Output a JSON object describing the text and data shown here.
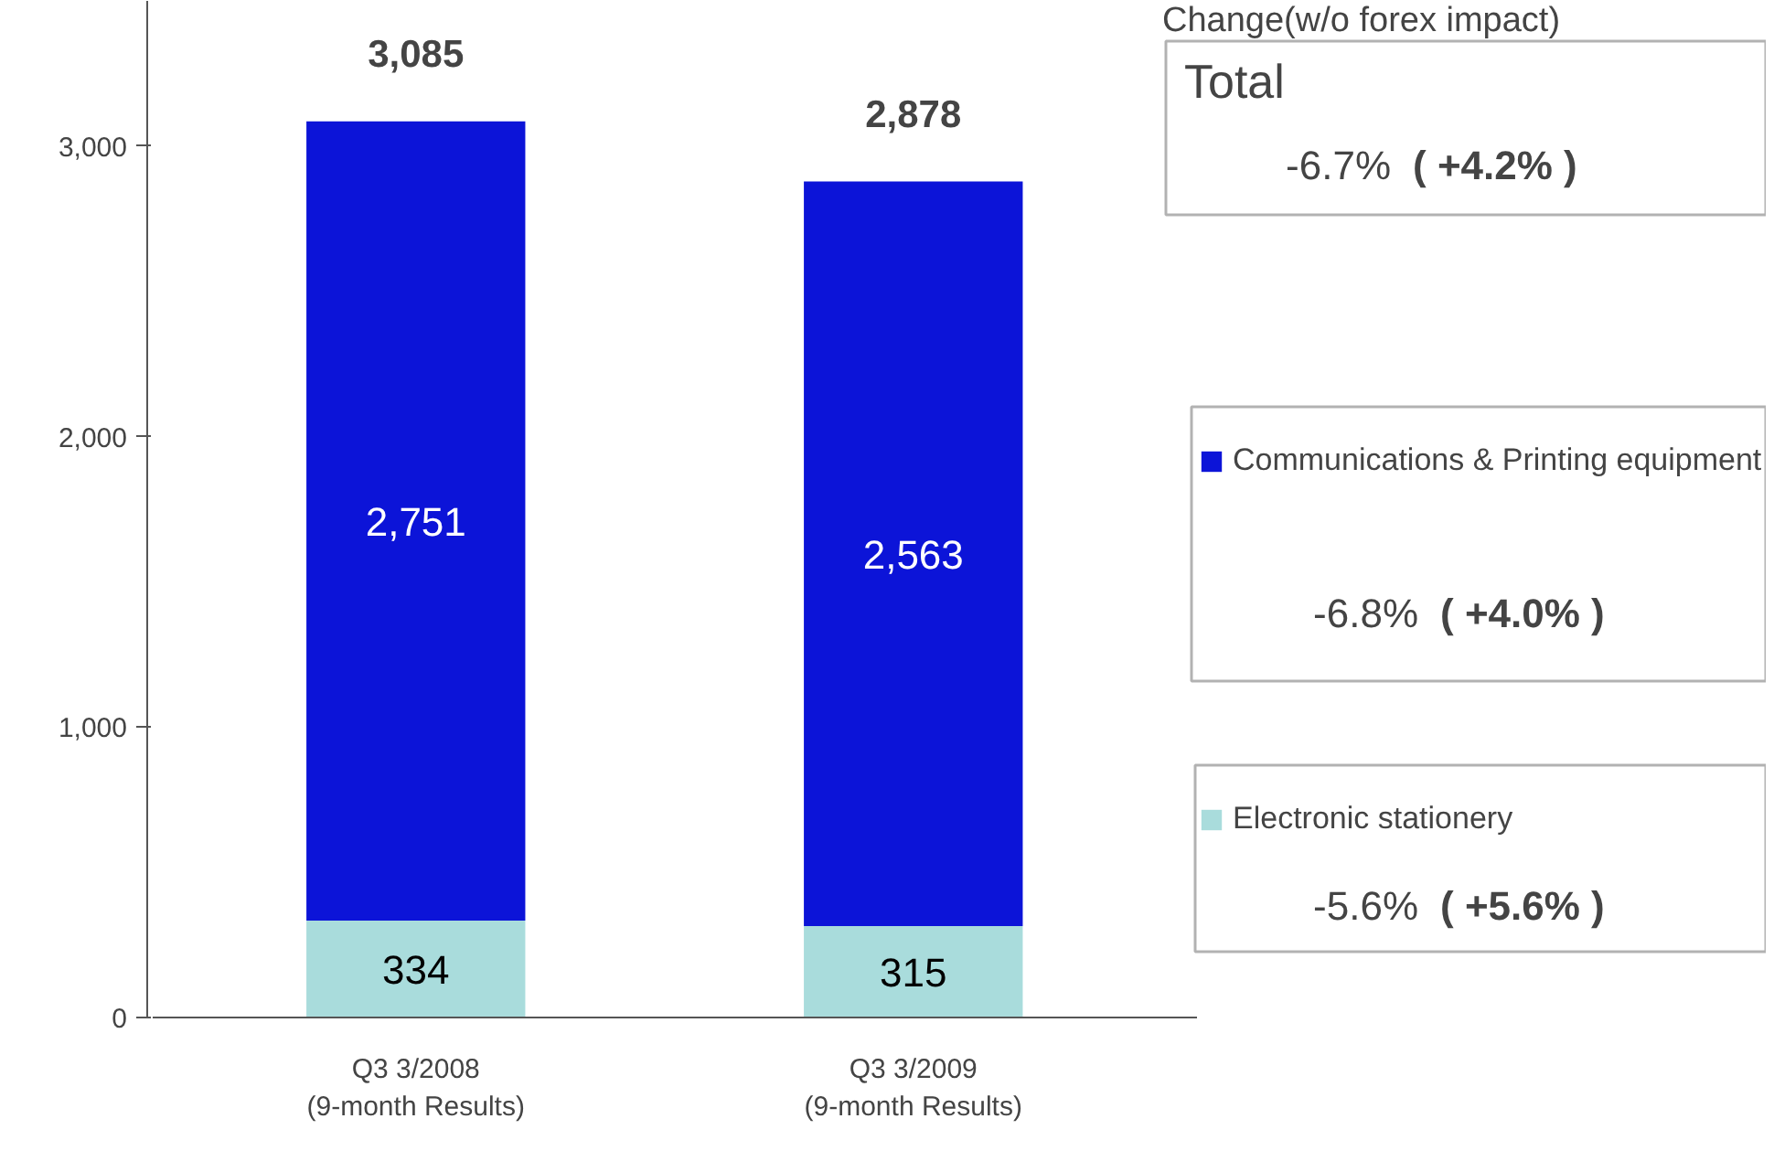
{
  "chart_data": {
    "type": "bar",
    "stacked": true,
    "categories": [
      "Q3 3/2008\n(9-month Results)",
      "Q3 3/2009\n(9-month Results)"
    ],
    "series": [
      {
        "name": "Electronic stationery",
        "color": "#a9dcdc",
        "values": [
          334,
          315
        ],
        "value_labels": [
          "334",
          "315"
        ]
      },
      {
        "name": "Communications & Printing equipment",
        "color": "#0c14d8",
        "values": [
          2751,
          2563
        ],
        "value_labels": [
          "2,751",
          "2,563"
        ]
      }
    ],
    "totals": [
      "3,085",
      "2,878"
    ],
    "ylim": [
      0,
      3500
    ],
    "yticks": [
      {
        "value": 0,
        "label": "0"
      },
      {
        "value": 1000,
        "label": "1,000"
      },
      {
        "value": 2000,
        "label": "2,000"
      },
      {
        "value": 3000,
        "label": "3,000"
      }
    ],
    "grid": false,
    "legend": "right",
    "annotations": [
      "Change(w/o forex impact)",
      "Total",
      "-6.7%",
      "( +4.2% )",
      "-6.8%",
      "( +4.0% )",
      "-5.6%",
      "( +5.6% )"
    ]
  }
}
